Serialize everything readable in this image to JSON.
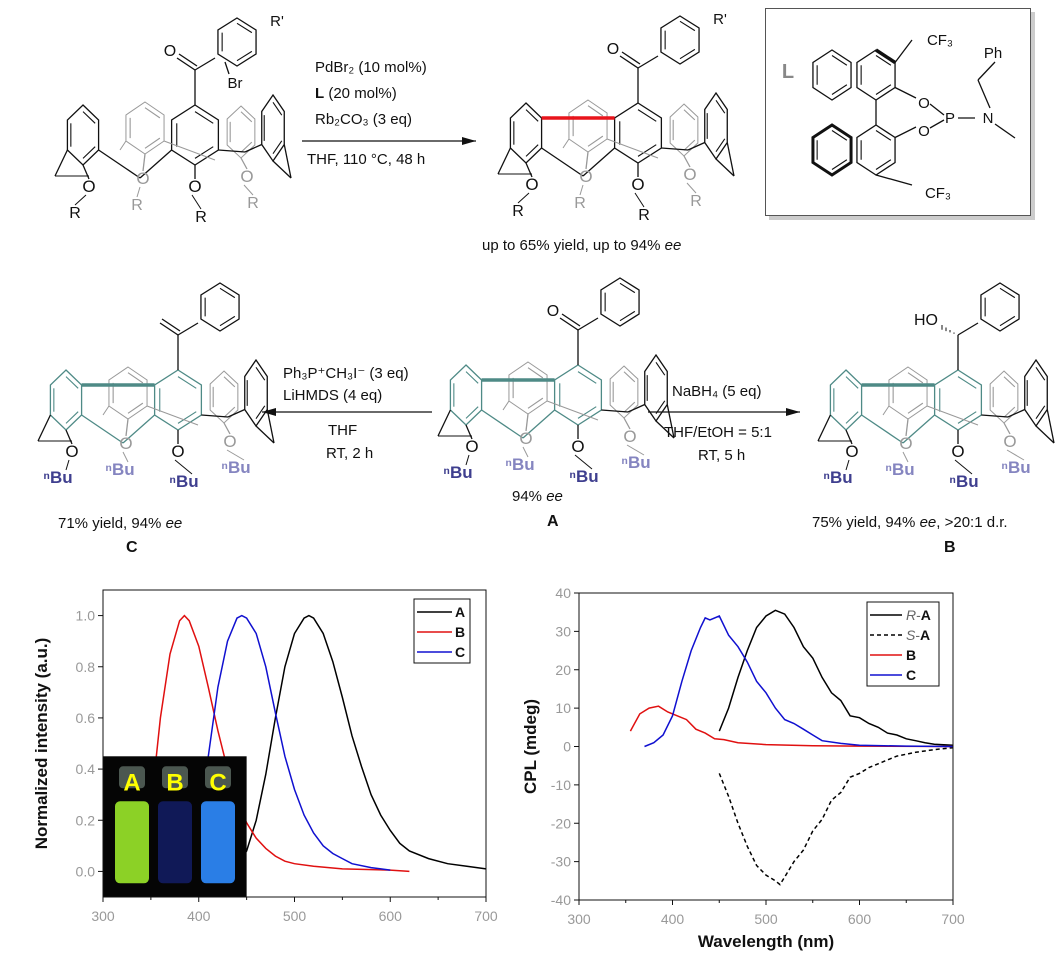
{
  "scheme": {
    "top_conditions": [
      "PdBr₂ (10 mol%)",
      "L",
      "(20 mol%)",
      "Rb₂CO₃ (3 eq)",
      "THF, 110 °C, 48 h"
    ],
    "top_result": [
      "up to 65% yield, up to 94% ",
      "ee"
    ],
    "ligand": {
      "label": "L",
      "cf3_top": "CF₃",
      "cf3_bottom": "CF₃",
      "ph": "Ph",
      "p": "P",
      "n": "N",
      "o1": "O",
      "o2": "O"
    },
    "reactant": {
      "o_labels": [
        "O",
        "O",
        "O",
        "O"
      ],
      "r_labels": [
        "R",
        "R",
        "R",
        "R"
      ],
      "carbonyl_o": "O",
      "br": "Br",
      "r_prime": "R'"
    },
    "product": {
      "o_labels": [
        "O",
        "O",
        "O",
        "O"
      ],
      "r_labels": [
        "R",
        "R",
        "R",
        "R"
      ],
      "carbonyl_o": "O",
      "r_prime": "R'"
    },
    "left_conditions": [
      "Ph₃P⁺CH₃I⁻ (3 eq)",
      "LiHMDS (4 eq)",
      "THF",
      "RT, 2 h"
    ],
    "right_conditions": [
      "NaBH₄ (5 eq)",
      "THF/EtOH = 5:1",
      "RT, 5 h"
    ],
    "compound_A": {
      "name": "A",
      "result": [
        "94% ",
        "ee"
      ],
      "o_labels": [
        "O",
        "O",
        "O",
        "O"
      ],
      "r_labels": [
        "ⁿBu",
        "ⁿBu",
        "ⁿBu",
        "ⁿBu"
      ],
      "carbonyl_o": "O"
    },
    "compound_B": {
      "name": "B",
      "result": [
        "75% yield, 94% ",
        "ee",
        ", >20:1 d.r."
      ],
      "o_labels": [
        "O",
        "O",
        "O",
        "O"
      ],
      "r_labels": [
        "ⁿBu",
        "ⁿBu",
        "ⁿBu",
        "ⁿBu"
      ],
      "ho": "HO"
    },
    "compound_C": {
      "name": "C",
      "result": [
        "71% yield, 94% ",
        "ee"
      ],
      "o_labels": [
        "O",
        "O",
        "O",
        "O"
      ],
      "r_labels": [
        "ⁿBu",
        "ⁿBu",
        "ⁿBu",
        "ⁿBu"
      ]
    },
    "colors": {
      "new_bond": "#e8141b",
      "scaffold": "#4e8a86",
      "nbu_front": "#3f3f8f",
      "nbu_back": "#8585c0",
      "back_ring": "#999999"
    }
  },
  "chart_data": [
    {
      "type": "line",
      "title": "",
      "xlabel": "",
      "ylabel": "Normalized intensity (a.u.)",
      "xlim": [
        300,
        700
      ],
      "ylim": [
        -0.1,
        1.1
      ],
      "xticks": [
        "300",
        "400",
        "500",
        "600",
        "700"
      ],
      "yticks": [
        "0.0",
        "0.2",
        "0.4",
        "0.6",
        "0.8",
        "1.0"
      ],
      "legend_position": "top-right",
      "grid": false,
      "inset_photo": {
        "labels": [
          "A",
          "B",
          "C"
        ],
        "colors": [
          "#9be82a",
          "#1a2a9a",
          "#2f8cff"
        ]
      },
      "series": [
        {
          "name": "A",
          "color": "#000000",
          "x": [
            440,
            450,
            460,
            470,
            480,
            490,
            500,
            510,
            515,
            520,
            530,
            540,
            550,
            560,
            570,
            580,
            590,
            600,
            610,
            620,
            640,
            660,
            680,
            700
          ],
          "y": [
            0.03,
            0.08,
            0.2,
            0.38,
            0.6,
            0.8,
            0.93,
            0.99,
            1.0,
            0.99,
            0.93,
            0.82,
            0.68,
            0.53,
            0.41,
            0.3,
            0.22,
            0.16,
            0.11,
            0.08,
            0.05,
            0.03,
            0.02,
            0.01
          ]
        },
        {
          "name": "B",
          "color": "#e01010",
          "x": [
            350,
            360,
            370,
            380,
            385,
            390,
            400,
            410,
            420,
            430,
            440,
            450,
            460,
            470,
            480,
            490,
            500,
            520,
            550,
            600,
            620
          ],
          "y": [
            0.25,
            0.6,
            0.85,
            0.98,
            1.0,
            0.98,
            0.88,
            0.72,
            0.55,
            0.4,
            0.28,
            0.19,
            0.13,
            0.09,
            0.06,
            0.04,
            0.03,
            0.02,
            0.01,
            0.005,
            0.0
          ]
        },
        {
          "name": "C",
          "color": "#1010d0",
          "x": [
            400,
            410,
            420,
            430,
            440,
            445,
            450,
            460,
            470,
            480,
            490,
            500,
            510,
            520,
            530,
            540,
            550,
            560,
            580,
            600
          ],
          "y": [
            0.2,
            0.45,
            0.72,
            0.9,
            0.99,
            1.0,
            0.99,
            0.93,
            0.8,
            0.62,
            0.45,
            0.32,
            0.22,
            0.15,
            0.1,
            0.07,
            0.05,
            0.03,
            0.015,
            0.005
          ]
        }
      ]
    },
    {
      "type": "line",
      "title": "",
      "xlabel": "Wavelength (nm)",
      "ylabel": "CPL (mdeg)",
      "xlim": [
        300,
        700
      ],
      "ylim": [
        -40,
        40
      ],
      "xticks": [
        "300",
        "400",
        "500",
        "600",
        "700"
      ],
      "yticks": [
        "-40",
        "-30",
        "-20",
        "-10",
        "0",
        "10",
        "20",
        "30",
        "40"
      ],
      "legend_position": "top-right",
      "grid": false,
      "series": [
        {
          "name": "R-A",
          "name_parts": [
            "R",
            "-",
            "A"
          ],
          "color": "#000000",
          "dash": false,
          "x": [
            450,
            460,
            470,
            480,
            490,
            500,
            510,
            520,
            530,
            540,
            550,
            560,
            570,
            580,
            590,
            600,
            610,
            620,
            630,
            640,
            650,
            660,
            670,
            680,
            700
          ],
          "y": [
            4,
            10,
            18,
            25,
            31,
            34,
            35.5,
            34.5,
            31,
            26,
            23,
            18,
            14,
            12,
            8,
            7.5,
            6,
            5,
            3.5,
            3,
            2,
            1.5,
            1,
            0.6,
            0.3
          ]
        },
        {
          "name": "S-A",
          "name_parts": [
            "S",
            "-",
            "A"
          ],
          "color": "#000000",
          "dash": true,
          "x": [
            450,
            460,
            470,
            480,
            490,
            500,
            510,
            515,
            520,
            530,
            540,
            550,
            560,
            570,
            580,
            590,
            600,
            610,
            620,
            630,
            640,
            660,
            680,
            700
          ],
          "y": [
            -7,
            -13,
            -20,
            -26,
            -31,
            -33.5,
            -35,
            -36,
            -34,
            -30,
            -27,
            -22,
            -19,
            -14,
            -12,
            -8,
            -7,
            -5.5,
            -4.5,
            -3.5,
            -2.5,
            -1.5,
            -0.8,
            -0.3
          ]
        },
        {
          "name": "B",
          "color": "#e01010",
          "dash": false,
          "x": [
            355,
            365,
            375,
            385,
            395,
            405,
            415,
            425,
            435,
            445,
            455,
            470,
            500,
            550,
            600,
            700
          ],
          "y": [
            4,
            8.5,
            10,
            10.5,
            9,
            8,
            7,
            4.5,
            3.5,
            2,
            1.8,
            1,
            0.5,
            0.2,
            0.1,
            0
          ]
        },
        {
          "name": "C",
          "color": "#1010d0",
          "dash": false,
          "x": [
            370,
            380,
            390,
            400,
            410,
            420,
            430,
            435,
            440,
            450,
            460,
            470,
            480,
            490,
            500,
            510,
            520,
            530,
            540,
            550,
            560,
            580,
            600,
            650,
            700
          ],
          "y": [
            0,
            1,
            3,
            8,
            17,
            25,
            31,
            33.5,
            33,
            34,
            29,
            26,
            22,
            17,
            14,
            10,
            7,
            6,
            4.5,
            3,
            1.5,
            0.8,
            0.3,
            0.1,
            0
          ]
        }
      ]
    }
  ]
}
